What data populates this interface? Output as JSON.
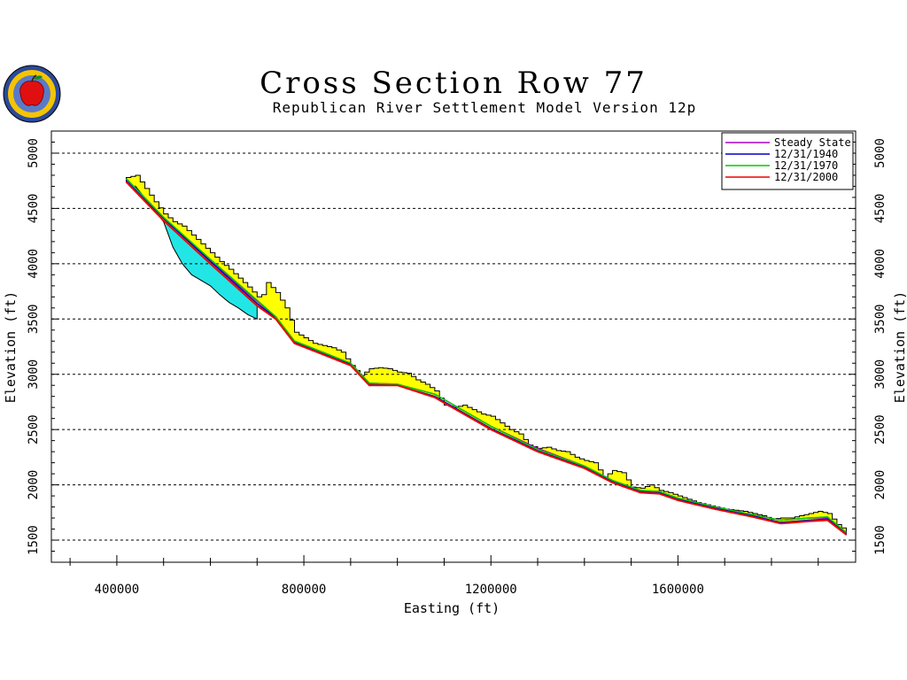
{
  "chart_data": {
    "type": "line",
    "title": "Cross Section Row 77",
    "subtitle": "Republican River Settlement Model Version 12p",
    "xlabel": "Easting (ft)",
    "ylabel": "Elevation (ft)",
    "xlim": [
      260000,
      1980000
    ],
    "ylim": [
      1300000,
      5200
    ],
    "xticks": [
      400000,
      800000,
      1200000,
      1600000
    ],
    "yticks": [
      1500,
      2000,
      2500,
      3000,
      3500,
      4000,
      4500,
      5000
    ],
    "grid": "horizontal dashed",
    "legend_position": "top-right",
    "ground_surface": {
      "x": [
        420000,
        440000,
        460000,
        480000,
        500000,
        520000,
        540000,
        560000,
        580000,
        600000,
        620000,
        640000,
        660000,
        680000,
        700000,
        710000,
        720000,
        740000,
        760000,
        780000,
        800000,
        820000,
        840000,
        860000,
        880000,
        900000,
        920000,
        940000,
        960000,
        980000,
        1000000,
        1020000,
        1040000,
        1060000,
        1080000,
        1100000,
        1120000,
        1140000,
        1160000,
        1180000,
        1200000,
        1220000,
        1240000,
        1260000,
        1280000,
        1300000,
        1320000,
        1340000,
        1360000,
        1380000,
        1400000,
        1420000,
        1440000,
        1460000,
        1480000,
        1500000,
        1520000,
        1540000,
        1560000,
        1580000,
        1600000,
        1620000,
        1640000,
        1660000,
        1680000,
        1700000,
        1720000,
        1740000,
        1760000,
        1780000,
        1800000,
        1820000,
        1840000,
        1860000,
        1880000,
        1900000,
        1920000,
        1940000,
        1960000
      ],
      "y": [
        4780,
        4800,
        4680,
        4560,
        4450,
        4380,
        4340,
        4260,
        4180,
        4100,
        4020,
        3950,
        3870,
        3790,
        3700,
        3720,
        3830,
        3740,
        3600,
        3380,
        3330,
        3280,
        3260,
        3240,
        3200,
        3080,
        2990,
        3050,
        3060,
        3050,
        3020,
        3010,
        2950,
        2910,
        2850,
        2720,
        2700,
        2720,
        2680,
        2640,
        2620,
        2560,
        2500,
        2460,
        2360,
        2330,
        2340,
        2310,
        2300,
        2250,
        2220,
        2200,
        2070,
        2130,
        2110,
        1980,
        1970,
        2000,
        1950,
        1930,
        1900,
        1870,
        1840,
        1820,
        1800,
        1780,
        1770,
        1760,
        1740,
        1720,
        1690,
        1700,
        1700,
        1720,
        1740,
        1760,
        1740,
        1640,
        1580
      ]
    },
    "series": [
      {
        "name": "Steady State",
        "color": "#aa00cc",
        "x": [
          420000,
          500000,
          600000,
          700000,
          740000,
          780000,
          840000,
          900000,
          940000,
          1000000,
          1080000,
          1200000,
          1300000,
          1400000,
          1460000,
          1520000,
          1560000,
          1600000,
          1680000,
          1760000,
          1820000,
          1880000,
          1920000,
          1960000
        ],
        "y": [
          4770,
          4420,
          4030,
          3660,
          3520,
          3300,
          3200,
          3100,
          2920,
          2910,
          2820,
          2530,
          2330,
          2170,
          2040,
          1950,
          1940,
          1880,
          1800,
          1730,
          1680,
          1700,
          1700,
          1560
        ]
      },
      {
        "name": "12/31/1940",
        "color": "#0000cc",
        "x": [
          420000,
          500000,
          600000,
          700000,
          740000,
          780000,
          840000,
          900000,
          940000,
          1000000,
          1080000,
          1200000,
          1300000,
          1400000,
          1460000,
          1520000,
          1560000,
          1600000,
          1680000,
          1760000,
          1820000,
          1880000,
          1920000,
          1960000
        ],
        "y": [
          4760,
          4410,
          4020,
          3640,
          3510,
          3290,
          3190,
          3090,
          2910,
          2900,
          2800,
          2510,
          2310,
          2160,
          2030,
          1940,
          1930,
          1870,
          1790,
          1720,
          1660,
          1680,
          1690,
          1560
        ]
      },
      {
        "name": "12/31/1970",
        "color": "#00cc00",
        "x": [
          420000,
          500000,
          600000,
          700000,
          740000,
          780000,
          840000,
          900000,
          940000,
          1000000,
          1080000,
          1200000,
          1300000,
          1400000,
          1460000,
          1520000,
          1560000,
          1600000,
          1680000,
          1760000,
          1820000,
          1880000,
          1920000,
          1960000
        ],
        "y": [
          4770,
          4420,
          4040,
          3670,
          3520,
          3300,
          3200,
          3100,
          2920,
          2910,
          2820,
          2530,
          2320,
          2170,
          2040,
          1950,
          1940,
          1880,
          1800,
          1730,
          1680,
          1700,
          1710,
          1570
        ]
      },
      {
        "name": "12/31/2000",
        "color": "#ee0000",
        "x": [
          420000,
          500000,
          600000,
          700000,
          740000,
          780000,
          840000,
          900000,
          940000,
          1000000,
          1080000,
          1200000,
          1300000,
          1400000,
          1460000,
          1520000,
          1560000,
          1600000,
          1680000,
          1760000,
          1820000,
          1880000,
          1920000,
          1960000
        ],
        "y": [
          4740,
          4390,
          4000,
          3620,
          3500,
          3280,
          3180,
          3080,
          2900,
          2900,
          2790,
          2500,
          2300,
          2150,
          2020,
          1930,
          1920,
          1860,
          1780,
          1710,
          1650,
          1670,
          1680,
          1550
        ]
      }
    ],
    "aquifer_bottom_band": {
      "x": [
        440000,
        500000,
        520000,
        540000,
        560000,
        580000,
        600000,
        620000,
        640000,
        660000,
        680000,
        700000
      ],
      "y": [
        4700,
        4380,
        4150,
        4000,
        3900,
        3850,
        3800,
        3720,
        3650,
        3600,
        3540,
        3500
      ]
    }
  },
  "legend": {
    "items": [
      {
        "label": "Steady State",
        "color": "#aa00cc"
      },
      {
        "label": "12/31/1940",
        "color": "#0000cc"
      },
      {
        "label": "12/31/1970",
        "color": "#00cc00"
      },
      {
        "label": "12/31/2000",
        "color": "#ee0000"
      }
    ]
  },
  "colors": {
    "saturated_fill": "#ffff00",
    "unsaturated_fill": "#22e6e6",
    "grid": "#000000"
  },
  "logo": {
    "icon": "apple-seal-icon"
  }
}
